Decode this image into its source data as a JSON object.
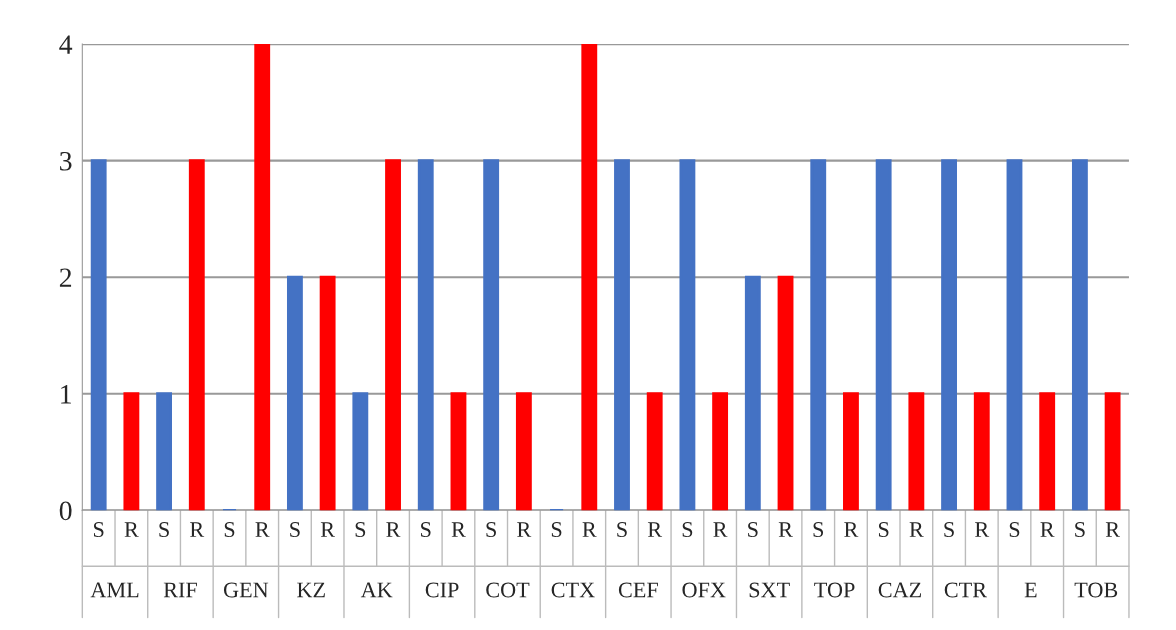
{
  "chart_data": {
    "type": "bar",
    "categories": [
      "S",
      "R",
      "S",
      "R",
      "S",
      "R",
      "S",
      "R",
      "S",
      "R",
      "S",
      "R",
      "S",
      "R",
      "S",
      "R",
      "S",
      "R",
      "S",
      "R",
      "S",
      "R",
      "S",
      "R",
      "S",
      "R",
      "S",
      "R",
      "S",
      "R",
      "S",
      "R"
    ],
    "values": [
      3,
      1,
      1,
      3,
      0,
      4,
      2,
      2,
      1,
      3,
      3,
      1,
      3,
      1,
      0,
      4,
      3,
      1,
      3,
      1,
      2,
      2,
      3,
      1,
      3,
      1,
      3,
      1,
      3,
      1,
      3,
      1
    ],
    "colors": [
      "#4472c4",
      "#ff0000",
      "#4472c4",
      "#ff0000",
      "#4472c4",
      "#ff0000",
      "#4472c4",
      "#ff0000",
      "#4472c4",
      "#ff0000",
      "#4472c4",
      "#ff0000",
      "#4472c4",
      "#ff0000",
      "#4472c4",
      "#ff0000",
      "#4472c4",
      "#ff0000",
      "#4472c4",
      "#ff0000",
      "#4472c4",
      "#ff0000",
      "#4472c4",
      "#ff0000",
      "#4472c4",
      "#ff0000",
      "#4472c4",
      "#ff0000",
      "#4472c4",
      "#ff0000",
      "#4472c4",
      "#ff0000"
    ],
    "annotations": [
      "AML",
      "RIF",
      "GEN",
      "KZ",
      "AK",
      "CIP",
      "COT",
      "CTX",
      "CEF",
      "OFX",
      "SXT",
      "TOP",
      "CAZ",
      "CTR",
      "E",
      "TOB"
    ],
    "ylim": [
      0,
      4
    ],
    "yticks": [
      0,
      1,
      2,
      3,
      4
    ],
    "grid": "y",
    "legend": false
  }
}
